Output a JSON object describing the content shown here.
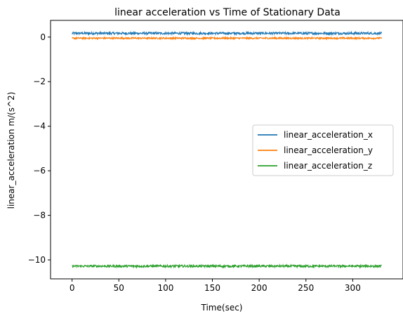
{
  "chart_data": {
    "type": "line",
    "title": "linear acceleration vs Time of Stationary Data",
    "xlabel": "Time(sec)",
    "ylabel": "linear_acceleration m/(s^2)",
    "xlim": [
      -23,
      353
    ],
    "ylim": [
      -10.85,
      0.75
    ],
    "xticks": [
      0,
      50,
      100,
      150,
      200,
      250,
      300
    ],
    "xtick_labels": [
      "0",
      "50",
      "100",
      "150",
      "200",
      "250",
      "300"
    ],
    "yticks": [
      0,
      -2,
      -4,
      -6,
      -8,
      -10
    ],
    "ytick_labels": [
      "0",
      "−2",
      "−4",
      "−6",
      "−8",
      "−10"
    ],
    "grid": false,
    "legend_position": "center-right",
    "x_range": [
      0,
      331
    ],
    "series": [
      {
        "name": "linear_acceleration_x",
        "color": "#1f77b4",
        "mean": 0.17,
        "noise": 0.05
      },
      {
        "name": "linear_acceleration_y",
        "color": "#ff7f0e",
        "mean": -0.05,
        "noise": 0.035
      },
      {
        "name": "linear_acceleration_z",
        "color": "#2ca02c",
        "mean": -10.28,
        "noise": 0.05
      }
    ]
  }
}
